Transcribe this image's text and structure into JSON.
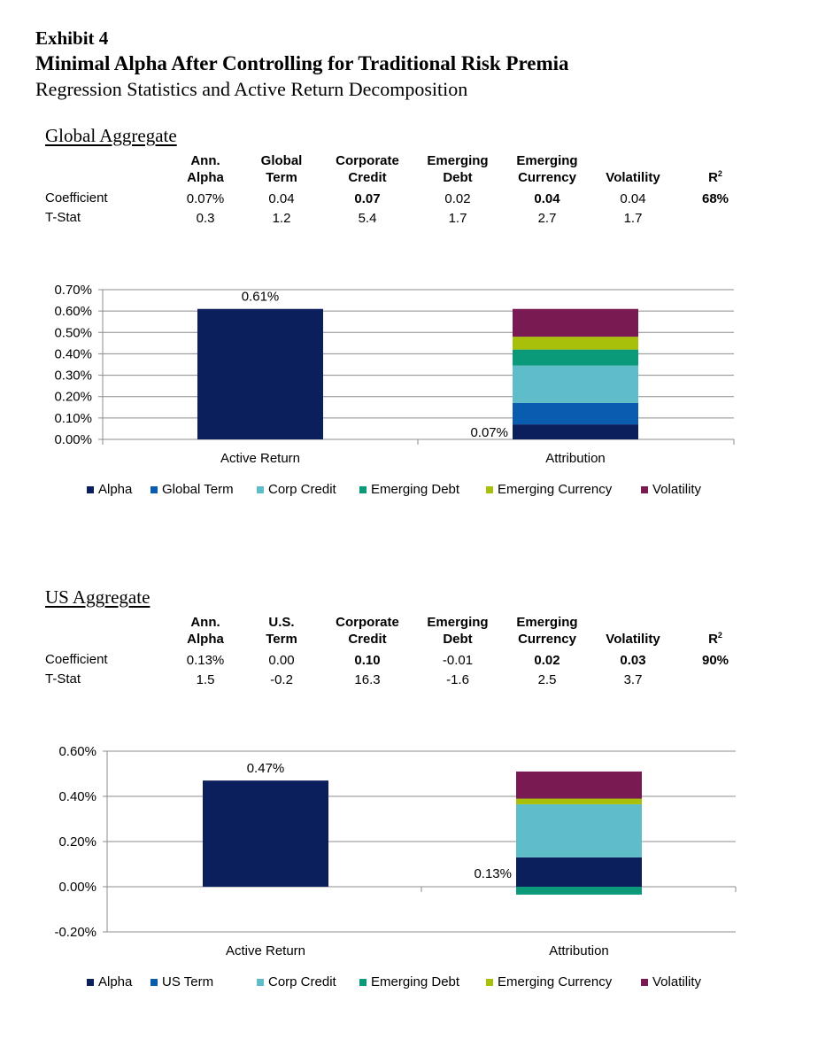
{
  "header": {
    "exhibit": "Exhibit 4",
    "title": "Minimal Alpha After Controlling for Traditional Risk Premia",
    "subtitle": "Regression Statistics and Active Return Decomposition"
  },
  "colors": {
    "Alpha": "#0a1f5c",
    "Term": "#0a5cb0",
    "Corp Credit": "#5ebdc8",
    "Emerging Debt": "#0a9a7a",
    "Emerging Currency": "#a9c00a",
    "Volatility": "#7a1a52"
  },
  "global": {
    "title": "Global Aggregate",
    "headers": [
      {
        "l1": "Ann.",
        "l2": "Alpha"
      },
      {
        "l1": "Global",
        "l2": "Term"
      },
      {
        "l1": "Corporate",
        "l2": "Credit"
      },
      {
        "l1": "Emerging",
        "l2": "Debt"
      },
      {
        "l1": "Emerging",
        "l2": "Currency"
      },
      {
        "l1": "",
        "l2": "Volatility"
      },
      {
        "l1": "",
        "l2": "R"
      }
    ],
    "coef_label": "Coefficient",
    "tstat_label": "T-Stat",
    "coefficients": [
      "0.07%",
      "0.04",
      "0.07",
      "0.02",
      "0.04",
      "0.04",
      "68%"
    ],
    "tstats": [
      "0.3",
      "1.2",
      "5.4",
      "1.7",
      "2.7",
      "1.7",
      ""
    ],
    "legend": [
      "Alpha",
      "Global Term",
      "Corp Credit",
      "Emerging Debt",
      "Emerging Currency",
      "Volatility"
    ]
  },
  "us": {
    "title": "US Aggregate",
    "headers": [
      {
        "l1": "Ann.",
        "l2": "Alpha"
      },
      {
        "l1": "U.S.",
        "l2": "Term"
      },
      {
        "l1": "Corporate",
        "l2": "Credit"
      },
      {
        "l1": "Emerging",
        "l2": "Debt"
      },
      {
        "l1": "Emerging",
        "l2": "Currency"
      },
      {
        "l1": "",
        "l2": "Volatility"
      },
      {
        "l1": "",
        "l2": "R"
      }
    ],
    "coef_label": "Coefficient",
    "tstat_label": "T-Stat",
    "coefficients": [
      "0.13%",
      "0.00",
      "0.10",
      "-0.01",
      "0.02",
      "0.03",
      "90%"
    ],
    "tstats": [
      "1.5",
      "-0.2",
      "16.3",
      "-1.6",
      "2.5",
      "3.7",
      ""
    ],
    "legend": [
      "Alpha",
      "US Term",
      "Corp Credit",
      "Emerging Debt",
      "Emerging Currency",
      "Volatility"
    ]
  },
  "r2_superscript": "2",
  "chart_data": [
    {
      "type": "bar",
      "stacked": true,
      "title": "Global Aggregate",
      "categories": [
        "Active Return",
        "Attribution"
      ],
      "ylim": [
        0,
        0.7
      ],
      "yticks": [
        0.0,
        0.1,
        0.2,
        0.3,
        0.4,
        0.5,
        0.6,
        0.7
      ],
      "ytick_labels": [
        "0.00%",
        "0.10%",
        "0.20%",
        "0.30%",
        "0.40%",
        "0.50%",
        "0.60%",
        "0.70%"
      ],
      "active_return": 0.61,
      "active_return_label": "0.61%",
      "attribution": [
        {
          "name": "Alpha",
          "value": 0.07
        },
        {
          "name": "Global Term",
          "value": 0.1
        },
        {
          "name": "Corp Credit",
          "value": 0.175
        },
        {
          "name": "Emerging Debt",
          "value": 0.075
        },
        {
          "name": "Emerging Currency",
          "value": 0.06
        },
        {
          "name": "Volatility",
          "value": 0.13
        }
      ],
      "alpha_label": "0.07%",
      "legend_position": "bottom"
    },
    {
      "type": "bar",
      "stacked": true,
      "title": "US Aggregate",
      "categories": [
        "Active Return",
        "Attribution"
      ],
      "ylim": [
        -0.2,
        0.6
      ],
      "yticks": [
        -0.2,
        0.0,
        0.2,
        0.4,
        0.6
      ],
      "ytick_labels": [
        "-0.20%",
        "0.00%",
        "0.20%",
        "0.40%",
        "0.60%"
      ],
      "active_return": 0.47,
      "active_return_label": "0.47%",
      "attribution": [
        {
          "name": "Alpha",
          "value": 0.13
        },
        {
          "name": "US Term",
          "value": 0.0
        },
        {
          "name": "Corp Credit",
          "value": 0.235
        },
        {
          "name": "Emerging Debt",
          "value": -0.035
        },
        {
          "name": "Emerging Currency",
          "value": 0.025
        },
        {
          "name": "Volatility",
          "value": 0.12
        }
      ],
      "alpha_label": "0.13%",
      "legend_position": "bottom"
    }
  ]
}
